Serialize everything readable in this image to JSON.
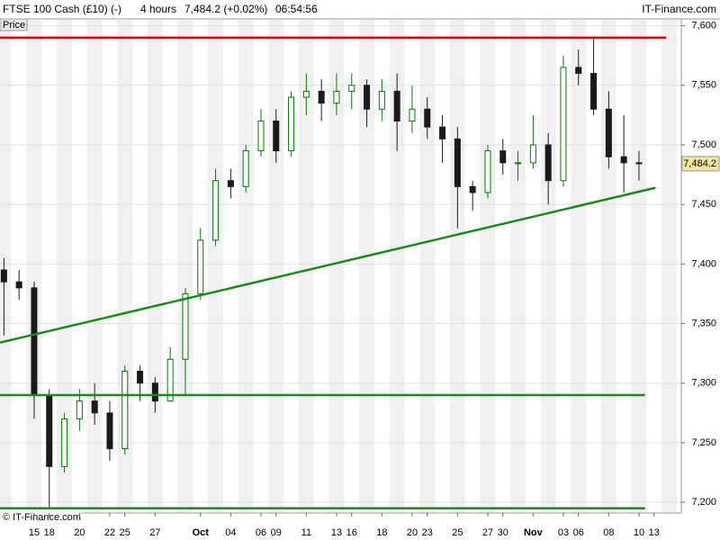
{
  "chart_data": {
    "type": "candlestick",
    "title": "FTSE 100 Cash (£10) (-)",
    "interval": "4 hours",
    "quote": "7,484.2 (+0.02%)",
    "time": "06:54:56",
    "brand": "IT-Finance.com",
    "panel_label": "Price",
    "copyright": "© IT-Finance.com",
    "last_price": {
      "value": 7484.2,
      "label": "7,484.2"
    },
    "up_color": "#007a00",
    "down_color": "#1a1a1a",
    "x": [
      0,
      1,
      2,
      3,
      4,
      5,
      6,
      7,
      8,
      9,
      10,
      11,
      12,
      13,
      14,
      15,
      16,
      17,
      18,
      19,
      20,
      21,
      22,
      23,
      24,
      25,
      26,
      27,
      28,
      29,
      30,
      31,
      32,
      33,
      34,
      35,
      36,
      37,
      38,
      39,
      40,
      41,
      42
    ],
    "open": [
      7395,
      7385,
      7380,
      7290,
      7230,
      7270,
      7285,
      7275,
      7245,
      7310,
      7300,
      7285,
      7320,
      7375,
      7420,
      7470,
      7465,
      7495,
      7520,
      7495,
      7540,
      7545,
      7535,
      7545,
      7550,
      7530,
      7545,
      7520,
      7530,
      7515,
      7505,
      7465,
      7460,
      7495,
      7485,
      7485,
      7500,
      7470,
      7565,
      7560,
      7530,
      7490,
      7485
    ],
    "high": [
      7405,
      7395,
      7385,
      7295,
      7275,
      7295,
      7300,
      7285,
      7315,
      7315,
      7305,
      7330,
      7380,
      7430,
      7480,
      7480,
      7500,
      7530,
      7530,
      7545,
      7560,
      7555,
      7560,
      7560,
      7555,
      7555,
      7560,
      7550,
      7540,
      7525,
      7515,
      7470,
      7500,
      7505,
      7495,
      7525,
      7510,
      7575,
      7580,
      7590,
      7545,
      7525,
      7495
    ],
    "low": [
      7340,
      7370,
      7270,
      7195,
      7225,
      7260,
      7265,
      7235,
      7240,
      7285,
      7275,
      7285,
      7290,
      7370,
      7415,
      7455,
      7460,
      7490,
      7485,
      7490,
      7525,
      7520,
      7525,
      7530,
      7515,
      7520,
      7495,
      7510,
      7505,
      7485,
      7430,
      7445,
      7455,
      7475,
      7470,
      7480,
      7450,
      7465,
      7550,
      7525,
      7480,
      7460,
      7470
    ],
    "close": [
      7385,
      7380,
      7290,
      7230,
      7270,
      7285,
      7275,
      7245,
      7310,
      7300,
      7285,
      7320,
      7375,
      7420,
      7470,
      7465,
      7495,
      7520,
      7495,
      7540,
      7545,
      7535,
      7545,
      7550,
      7530,
      7545,
      7520,
      7530,
      7515,
      7505,
      7465,
      7460,
      7495,
      7485,
      7485,
      7500,
      7470,
      7565,
      7560,
      7530,
      7490,
      7485,
      7484.2
    ],
    "lines": [
      {
        "color": "#e00000",
        "x": [
          -0.26,
          43.8
        ],
        "y": [
          7590,
          7590
        ]
      },
      {
        "color": "#1a8a1a",
        "x": [
          -0.26,
          42.4
        ],
        "y": [
          7290,
          7290
        ]
      },
      {
        "color": "#1a8a1a",
        "x": [
          -0.26,
          42.4
        ],
        "y": [
          7195,
          7195
        ]
      },
      {
        "color": "#1a8a1a",
        "x": [
          -0.26,
          43.1
        ],
        "y": [
          7334,
          7464
        ]
      }
    ],
    "xlim": [
      -0.26,
      44.8
    ],
    "xticks": [
      {
        "value": 2,
        "label": "15"
      },
      {
        "value": 3,
        "label": "18"
      },
      {
        "value": 5,
        "label": "20"
      },
      {
        "value": 7,
        "label": "22"
      },
      {
        "value": 8,
        "label": "25"
      },
      {
        "value": 10,
        "label": "27"
      },
      {
        "value": 13,
        "label": "Oct"
      },
      {
        "value": 15,
        "label": "04"
      },
      {
        "value": 17,
        "label": "06"
      },
      {
        "value": 18,
        "label": "09"
      },
      {
        "value": 20,
        "label": "11"
      },
      {
        "value": 22,
        "label": "13"
      },
      {
        "value": 23,
        "label": "16"
      },
      {
        "value": 25,
        "label": "18"
      },
      {
        "value": 27,
        "label": "20"
      },
      {
        "value": 28,
        "label": "23"
      },
      {
        "value": 30,
        "label": "25"
      },
      {
        "value": 32,
        "label": "27"
      },
      {
        "value": 33,
        "label": "30"
      },
      {
        "value": 35,
        "label": "Nov"
      },
      {
        "value": 37,
        "label": "03"
      },
      {
        "value": 38,
        "label": "06"
      },
      {
        "value": 40,
        "label": "08"
      },
      {
        "value": 42,
        "label": "10"
      },
      {
        "value": 43,
        "label": "13"
      }
    ],
    "ylim": [
      7191,
      7605
    ],
    "yticks": [
      {
        "value": 7200,
        "label": "7,200"
      },
      {
        "value": 7250,
        "label": "7,250"
      },
      {
        "value": 7300,
        "label": "7,300"
      },
      {
        "value": 7350,
        "label": "7,350"
      },
      {
        "value": 7400,
        "label": "7,400"
      },
      {
        "value": 7450,
        "label": "7,450"
      },
      {
        "value": 7500,
        "label": "7,500"
      },
      {
        "value": 7550,
        "label": "7,550"
      },
      {
        "value": 7600,
        "label": "7,600"
      }
    ],
    "grid": true
  }
}
